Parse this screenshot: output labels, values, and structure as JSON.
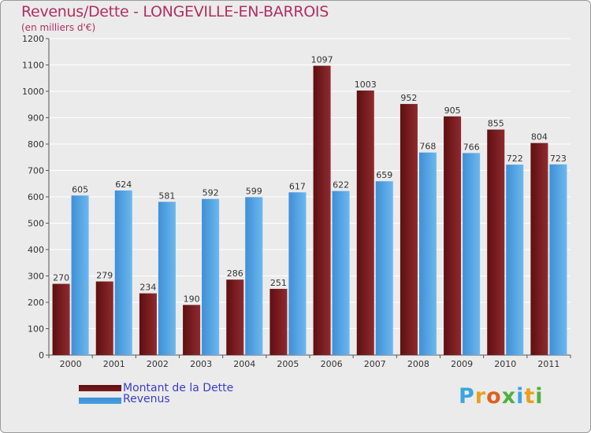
{
  "chart_data": {
    "type": "bar",
    "title": "Revenus/Dette - LONGEVILLE-EN-BARROIS",
    "subtitle": "(en milliers d'€)",
    "categories": [
      "2000",
      "2001",
      "2002",
      "2003",
      "2004",
      "2005",
      "2006",
      "2007",
      "2008",
      "2009",
      "2010",
      "2011"
    ],
    "series": [
      {
        "name": "Montant de la Dette",
        "color": "#7a1a1e",
        "values": [
          270,
          279,
          234,
          190,
          286,
          251,
          1097,
          1003,
          952,
          905,
          855,
          804
        ]
      },
      {
        "name": "Revenus",
        "color": "#4a9fe0",
        "values": [
          605,
          624,
          581,
          592,
          599,
          617,
          622,
          659,
          768,
          766,
          722,
          723
        ]
      }
    ],
    "ylim": [
      0,
      1200
    ],
    "yticks": [
      0,
      100,
      200,
      300,
      400,
      500,
      600,
      700,
      800,
      900,
      1000,
      1100,
      1200
    ],
    "grid": true,
    "legend": "bottom-left"
  },
  "logo": {
    "letters": [
      "P",
      "r",
      "o",
      "x",
      "i",
      "t",
      "i"
    ],
    "colors": [
      "#3aa5e0",
      "#e8a020",
      "#e06020",
      "#50b040",
      "#3aa5e0",
      "#e8a020",
      "#50b040"
    ]
  }
}
